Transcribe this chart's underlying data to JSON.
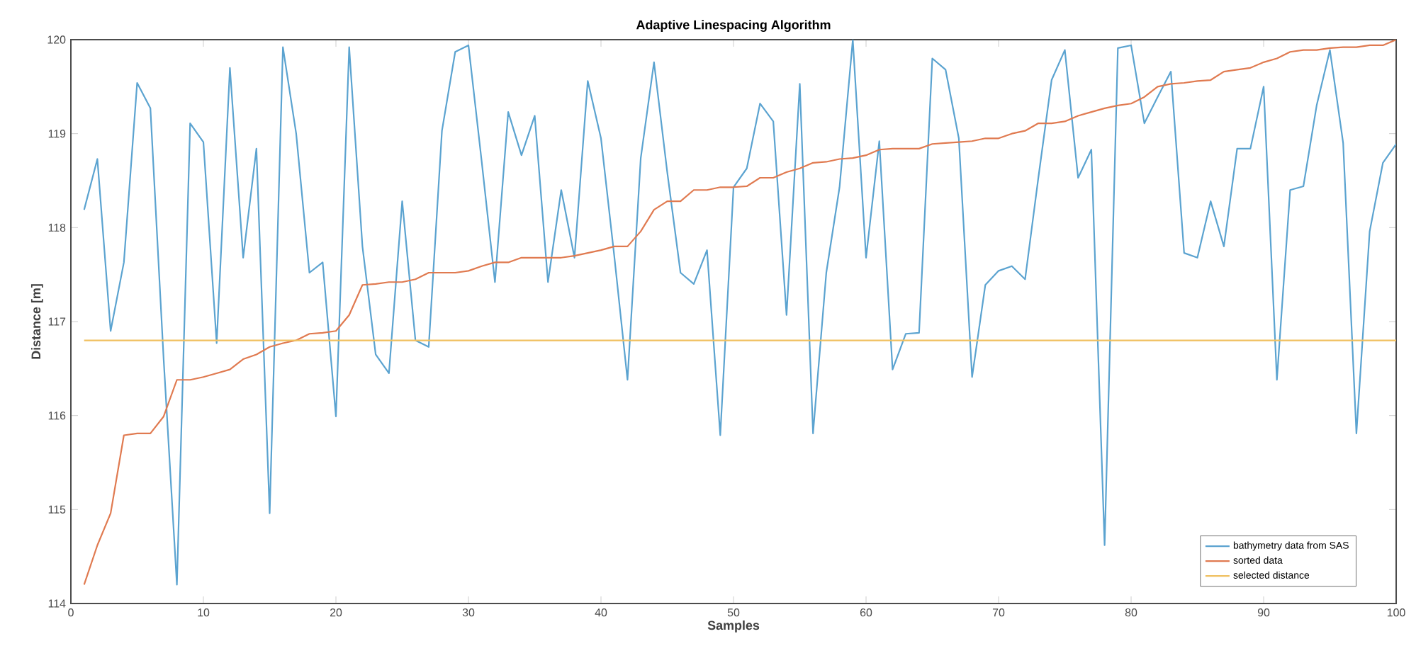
{
  "chart_data": {
    "type": "line",
    "title": "Adaptive Linespacing Algorithm",
    "xlabel": "Samples",
    "ylabel": "Distance [m]",
    "x": [
      1,
      2,
      3,
      4,
      5,
      6,
      7,
      8,
      9,
      10,
      11,
      12,
      13,
      14,
      15,
      16,
      17,
      18,
      19,
      20,
      21,
      22,
      23,
      24,
      25,
      26,
      27,
      28,
      29,
      30,
      31,
      32,
      33,
      34,
      35,
      36,
      37,
      38,
      39,
      40,
      41,
      42,
      43,
      44,
      45,
      46,
      47,
      48,
      49,
      50,
      51,
      52,
      53,
      54,
      55,
      56,
      57,
      58,
      59,
      60,
      61,
      62,
      63,
      64,
      65,
      66,
      67,
      68,
      69,
      70,
      71,
      72,
      73,
      74,
      75,
      76,
      77,
      78,
      79,
      80,
      81,
      82,
      83,
      84,
      85,
      86,
      87,
      88,
      89,
      90,
      91,
      92,
      93,
      94,
      95,
      96,
      97,
      98,
      99,
      100
    ],
    "series": [
      {
        "name": "bathymetry data from SAS",
        "color": "#5ba3d0",
        "values": [
          118.19,
          118.73,
          116.9,
          117.63,
          119.54,
          119.27,
          116.6,
          114.2,
          119.11,
          118.91,
          116.77,
          119.7,
          117.68,
          118.84,
          114.96,
          119.92,
          119.0,
          117.52,
          117.63,
          115.99,
          119.92,
          117.8,
          116.65,
          116.45,
          118.28,
          116.8,
          116.73,
          119.03,
          119.87,
          119.94,
          118.7,
          117.42,
          119.23,
          118.77,
          119.19,
          117.42,
          118.4,
          117.68,
          119.56,
          118.95,
          117.7,
          116.38,
          118.74,
          119.76,
          118.59,
          117.52,
          117.4,
          117.76,
          115.79,
          118.43,
          118.63,
          119.32,
          119.13,
          117.07,
          119.53,
          115.81,
          117.52,
          118.43,
          120.0,
          117.68,
          118.92,
          116.49,
          116.87,
          116.88,
          119.8,
          119.68,
          118.95,
          116.41,
          117.39,
          117.54,
          117.59,
          117.45,
          118.53,
          119.57,
          119.89,
          118.53,
          118.83,
          114.62,
          119.91,
          119.94,
          119.11,
          119.39,
          119.66,
          117.73,
          117.68,
          118.28,
          117.8,
          118.84,
          118.84,
          119.5,
          116.38,
          118.4,
          118.44,
          119.3,
          119.89,
          118.9,
          115.81,
          117.96,
          118.69,
          118.89
        ]
      },
      {
        "name": "sorted data",
        "color": "#e07a50",
        "values": [
          114.2,
          114.62,
          114.96,
          115.79,
          115.81,
          115.81,
          115.99,
          116.38,
          116.38,
          116.41,
          116.45,
          116.49,
          116.6,
          116.65,
          116.73,
          116.77,
          116.8,
          116.87,
          116.88,
          116.9,
          117.07,
          117.39,
          117.4,
          117.42,
          117.42,
          117.45,
          117.52,
          117.52,
          117.52,
          117.54,
          117.59,
          117.63,
          117.63,
          117.68,
          117.68,
          117.68,
          117.68,
          117.7,
          117.73,
          117.76,
          117.8,
          117.8,
          117.96,
          118.19,
          118.28,
          118.28,
          118.4,
          118.4,
          118.43,
          118.43,
          118.44,
          118.53,
          118.53,
          118.59,
          118.63,
          118.69,
          118.7,
          118.73,
          118.74,
          118.77,
          118.83,
          118.84,
          118.84,
          118.84,
          118.89,
          118.9,
          118.91,
          118.92,
          118.95,
          118.95,
          119.0,
          119.03,
          119.11,
          119.11,
          119.13,
          119.19,
          119.23,
          119.27,
          119.3,
          119.32,
          119.39,
          119.5,
          119.53,
          119.54,
          119.56,
          119.57,
          119.66,
          119.68,
          119.7,
          119.76,
          119.8,
          119.87,
          119.89,
          119.89,
          119.91,
          119.92,
          119.92,
          119.94,
          119.94,
          120.0
        ]
      },
      {
        "name": "selected distance",
        "color": "#f0c060",
        "x": [
          1,
          100
        ],
        "values": [
          116.8,
          116.8
        ]
      }
    ],
    "xlim": [
      0,
      100
    ],
    "xticks": [
      0,
      10,
      20,
      30,
      40,
      50,
      60,
      70,
      80,
      90,
      100
    ],
    "ylim": [
      114,
      120
    ],
    "yticks": [
      114,
      115,
      116,
      117,
      118,
      119,
      120
    ],
    "grid": false,
    "legend": "bottom right",
    "marker": "none",
    "line_style": "solid"
  }
}
